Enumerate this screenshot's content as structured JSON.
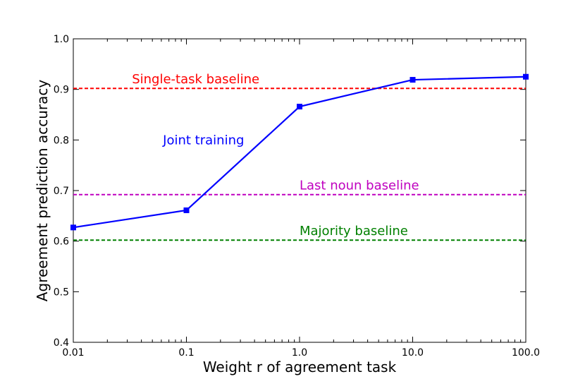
{
  "chart_data": {
    "type": "line",
    "xlabel": "Weight r of agreement task",
    "ylabel": "Agreement prediction accuracy",
    "xscale": "log",
    "xlim": [
      0.01,
      100.0
    ],
    "ylim": [
      0.4,
      1.0
    ],
    "x_ticks": [
      0.01,
      0.1,
      1.0,
      10.0,
      100.0
    ],
    "x_tick_labels": [
      "0.01",
      "0.1",
      "1.0",
      "10.0",
      "100.0"
    ],
    "y_ticks": [
      0.4,
      0.5,
      0.6,
      0.7,
      0.8,
      0.9,
      1.0
    ],
    "y_tick_labels": [
      "0.4",
      "0.5",
      "0.6",
      "0.7",
      "0.8",
      "0.9",
      "1.0"
    ],
    "grid": false,
    "series": [
      {
        "name": "Joint training",
        "color": "#0000ff",
        "marker": "square",
        "x": [
          0.01,
          0.1,
          1.0,
          10.0,
          100.0
        ],
        "y": [
          0.627,
          0.661,
          0.866,
          0.919,
          0.925
        ]
      }
    ],
    "baselines": [
      {
        "name": "Single-task baseline",
        "y": 0.902,
        "color": "#ff0000"
      },
      {
        "name": "Last noun baseline",
        "y": 0.692,
        "color": "#bf00bf"
      },
      {
        "name": "Majority baseline",
        "y": 0.602,
        "color": "#008000"
      }
    ]
  }
}
